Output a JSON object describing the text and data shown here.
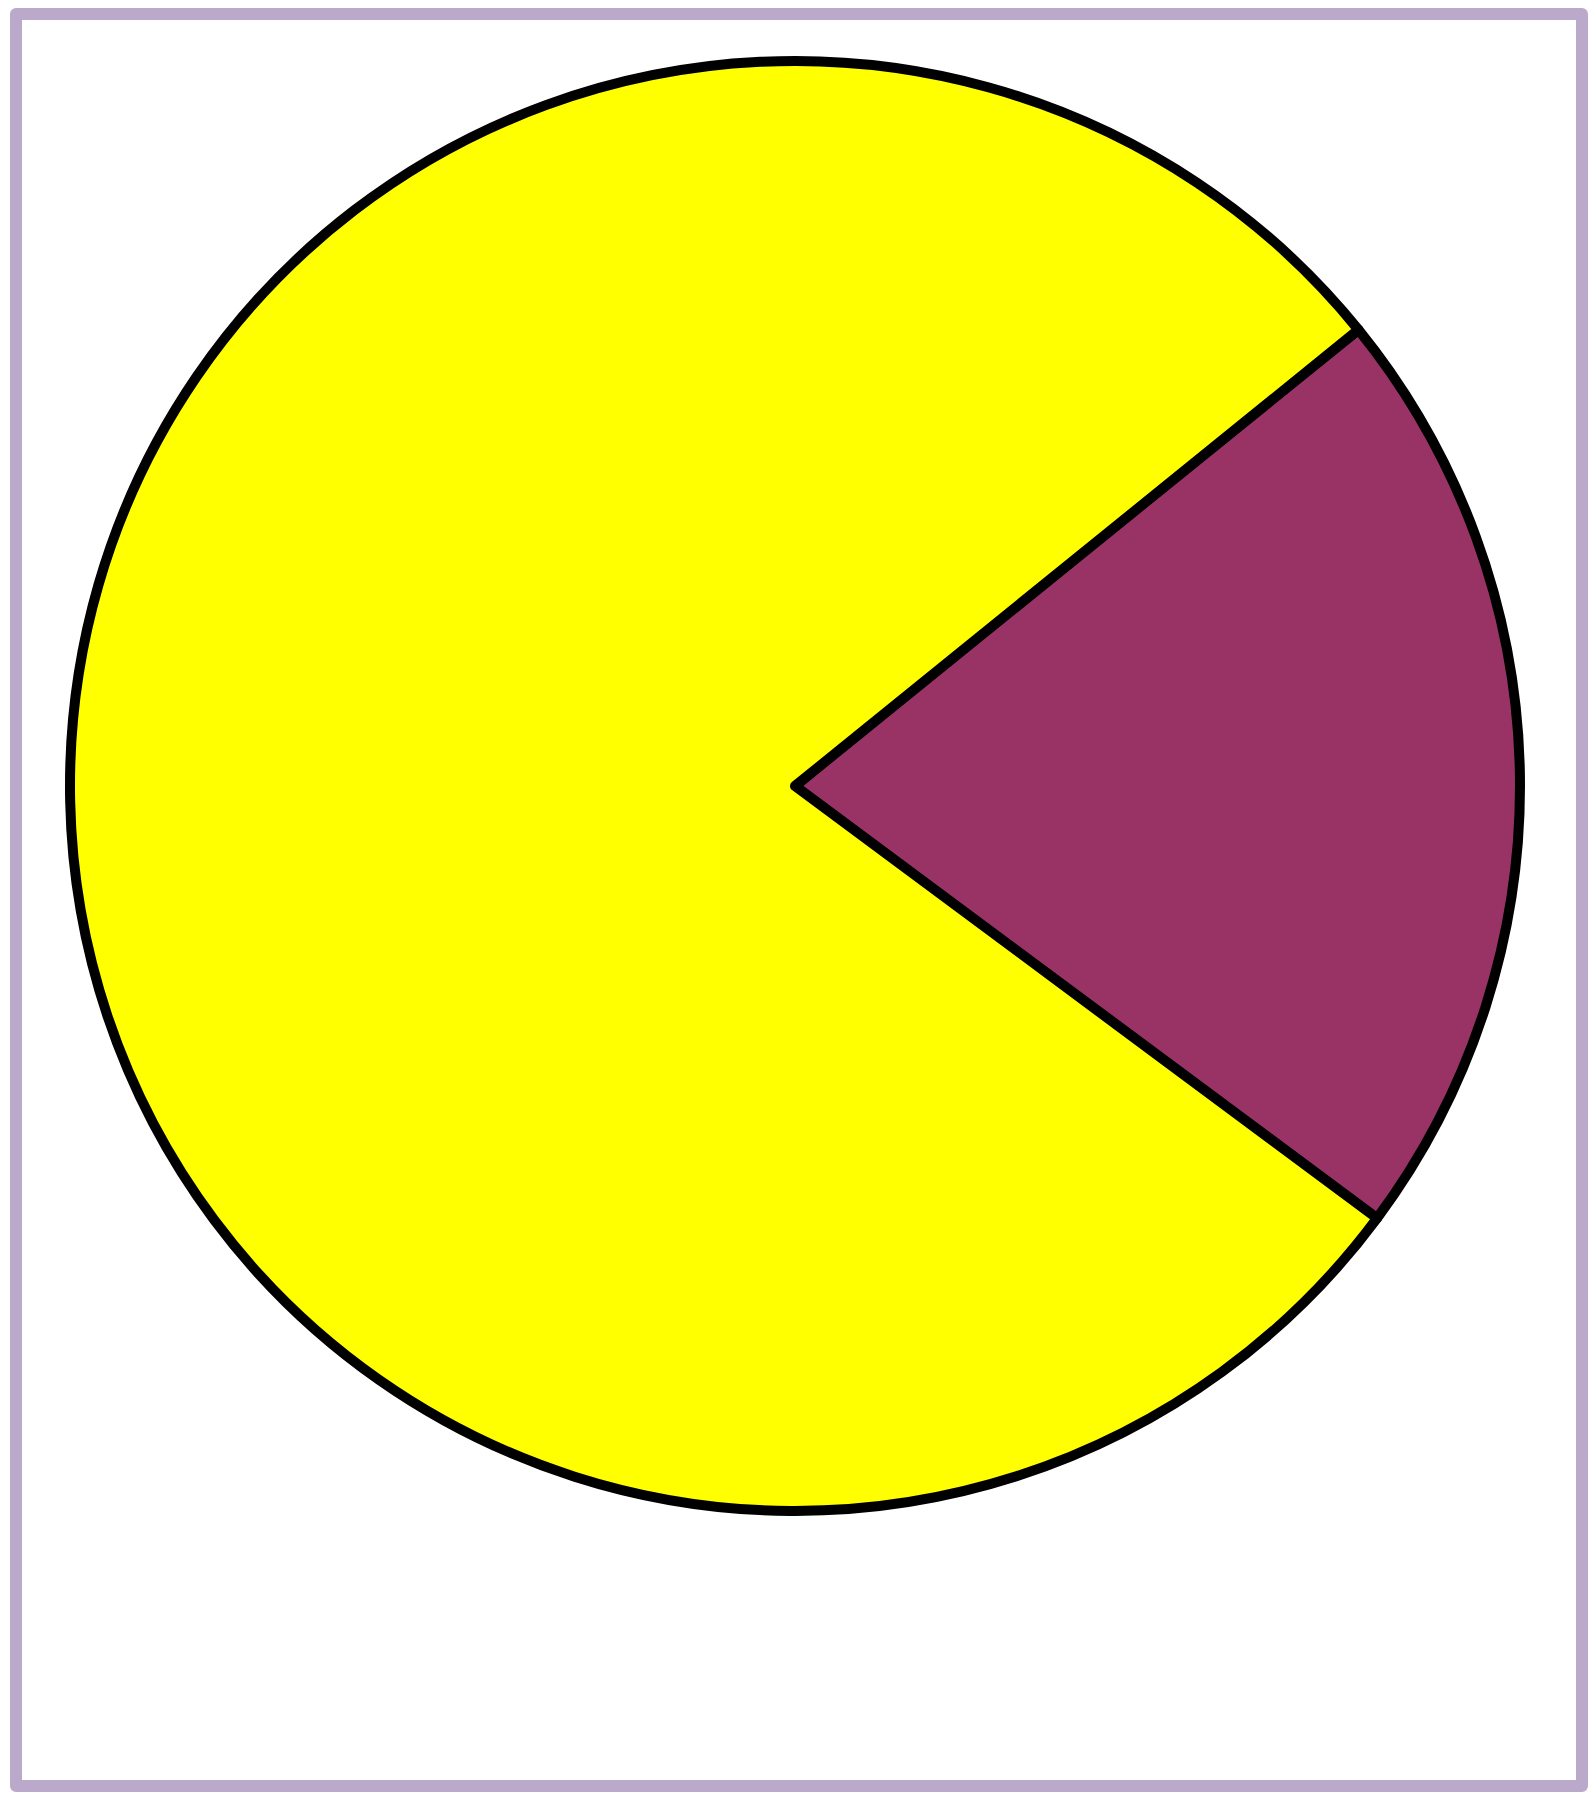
{
  "chart_data": {
    "type": "pie",
    "categories": [
      null,
      null
    ],
    "values": [
      21,
      79
    ],
    "colors": [
      "#993366",
      "#ffff00"
    ]
  }
}
